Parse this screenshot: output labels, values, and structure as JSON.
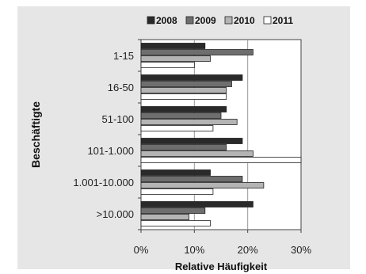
{
  "chart_data": {
    "type": "bar",
    "orientation": "horizontal",
    "categories": [
      "1-15",
      "16-50",
      "51-100",
      "101-1.000",
      "1.001-10.000",
      ">10.000"
    ],
    "series": [
      {
        "name": "2008",
        "color": "#2a2a2a",
        "values": [
          12,
          19,
          16,
          19,
          13,
          21
        ]
      },
      {
        "name": "2009",
        "color": "#6e6e6e",
        "values": [
          21,
          17,
          15,
          16,
          19,
          12
        ]
      },
      {
        "name": "2010",
        "color": "#b4b4b4",
        "values": [
          13,
          16,
          18,
          21,
          23,
          9
        ]
      },
      {
        "name": "2011",
        "color": "#ffffff",
        "values": [
          10,
          16,
          13.5,
          30,
          13.5,
          13
        ]
      }
    ],
    "xlabel": "Relative Häufigkeit",
    "ylabel": "Beschäftigte",
    "xlim": [
      0,
      30
    ],
    "xticks": [
      0,
      10,
      20,
      30
    ],
    "xtick_labels": [
      "0%",
      "10%",
      "20%",
      "30%"
    ],
    "grid": "vertical",
    "legend_position": "top",
    "background_color": "#e6e6e6",
    "plot_background_color": "#ffffff"
  }
}
